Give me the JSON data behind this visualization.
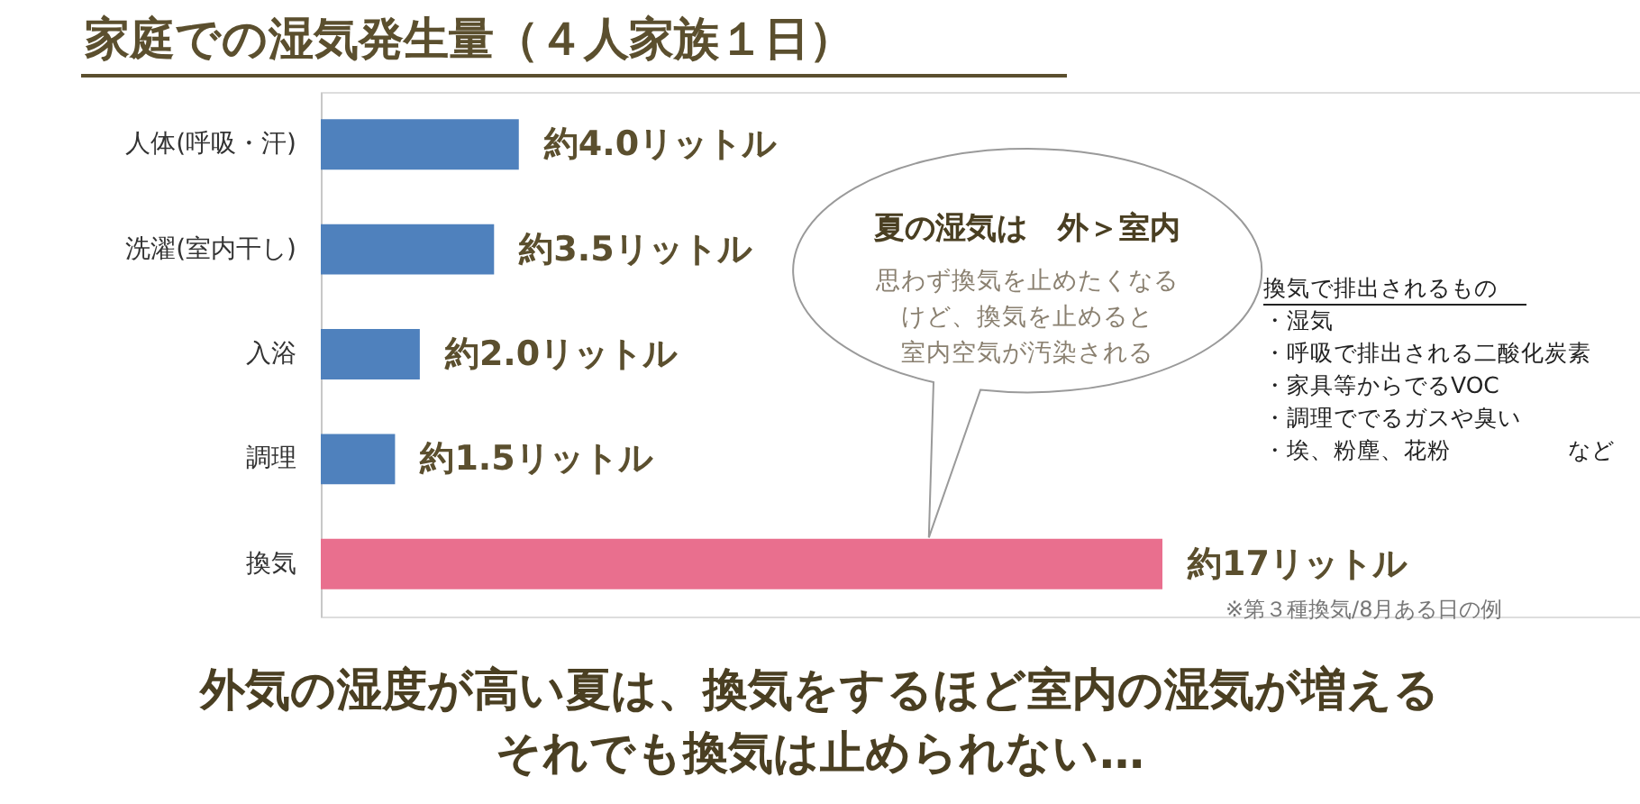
{
  "chart_data": {
    "type": "bar",
    "orientation": "horizontal",
    "title": "家庭での湿気発生量（４人家族１日）",
    "categories": [
      "人体(呼吸・汗)",
      "洗濯(室内干し)",
      "入浴",
      "調理",
      "換気"
    ],
    "values": [
      4.0,
      3.5,
      2.0,
      1.5,
      17
    ],
    "colors": [
      "#4f81bd",
      "#4f81bd",
      "#4f81bd",
      "#4f81bd",
      "#e96f8e"
    ],
    "value_labels": [
      "約4.0リットル",
      "約3.5リットル",
      "約2.0リットル",
      "約1.5リットル",
      "約17リットル"
    ],
    "annotations": [
      "夏の湿気は　外＞室内",
      "思わず換気を止めたくなる",
      "けど、換気を止めると",
      "室内空気が汚染される",
      "換気で排出されるもの",
      "・湿気",
      "・呼吸で排出される二酸化炭素",
      "・家具等からでるVOC",
      "・調理ででるガスや臭い",
      "・埃、粉塵、花粉　　　　　など",
      "※第３種換気/8月ある日の例",
      "外気の湿度が高い夏は、換気をするほど室内の湿気が増える",
      "それでも換気は止められない…"
    ]
  }
}
